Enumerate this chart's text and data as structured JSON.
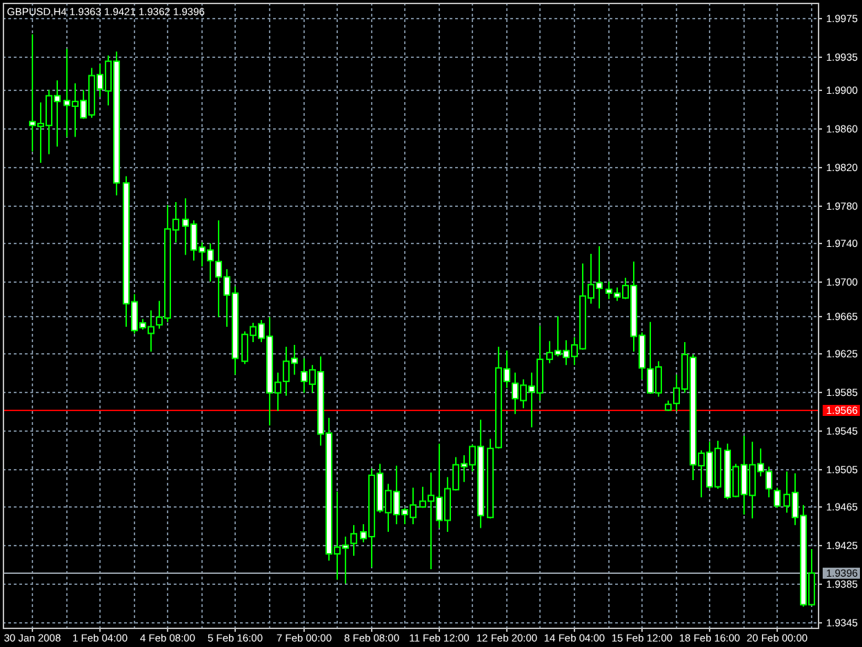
{
  "chart_data": {
    "type": "candlestick",
    "title": "GBPUSD,H4 1.9363 1.9421 1.9362 1.9396",
    "categories": [
      "30 Jan 2008",
      null,
      null,
      null,
      null,
      null,
      null,
      null,
      "1 Feb 04:00",
      null,
      null,
      null,
      null,
      null,
      null,
      null,
      "4 Feb 08:00",
      null,
      null,
      null,
      null,
      null,
      null,
      null,
      "5 Feb 16:00",
      null,
      null,
      null,
      null,
      null,
      null,
      null,
      "7 Feb 00:00",
      null,
      null,
      null,
      null,
      null,
      null,
      null,
      "8 Feb 08:00",
      null,
      null,
      null,
      null,
      null,
      null,
      null,
      "11 Feb 12:00",
      null,
      null,
      null,
      null,
      null,
      null,
      null,
      "12 Feb 20:00",
      null,
      null,
      null,
      null,
      null,
      null,
      null,
      "14 Feb 04:00",
      null,
      null,
      null,
      null,
      null,
      null,
      null,
      "15 Feb 12:00",
      null,
      null,
      null,
      null,
      null,
      null,
      null,
      "18 Feb 16:00",
      null,
      null,
      null,
      null,
      null,
      null,
      null,
      "20 Feb 00:00",
      null,
      null,
      null,
      null
    ],
    "ohlc": [
      [
        1.9867,
        1.9958,
        1.9836,
        1.9863
      ],
      [
        1.9862,
        1.9887,
        1.9824,
        1.9865
      ],
      [
        1.9863,
        1.99,
        1.9833,
        1.9894
      ],
      [
        1.9894,
        1.991,
        1.9841,
        1.9888
      ],
      [
        1.9889,
        1.9943,
        1.9851,
        1.9884
      ],
      [
        1.9883,
        1.9907,
        1.9851,
        1.9888
      ],
      [
        1.9889,
        1.99,
        1.987,
        1.9871
      ],
      [
        1.9874,
        1.9923,
        1.9871,
        1.9915
      ],
      [
        1.9916,
        1.9927,
        1.9893,
        1.9901
      ],
      [
        1.9899,
        1.9936,
        1.9884,
        1.993
      ],
      [
        1.993,
        1.994,
        1.979,
        1.9803
      ],
      [
        1.9803,
        1.981,
        1.9653,
        1.9677
      ],
      [
        1.9679,
        1.9687,
        1.9646,
        1.9649
      ],
      [
        1.9657,
        1.9661,
        1.965,
        1.9652
      ],
      [
        1.9646,
        1.967,
        1.9627,
        1.9653
      ],
      [
        1.9655,
        1.968,
        1.9651,
        1.9663
      ],
      [
        1.9662,
        1.978,
        1.9658,
        1.9755
      ],
      [
        1.9754,
        1.9783,
        1.9741,
        1.9765
      ],
      [
        1.9765,
        1.9787,
        1.9728,
        1.9758
      ],
      [
        1.976,
        1.9764,
        1.9722,
        1.9733
      ],
      [
        1.9736,
        1.9741,
        1.9716,
        1.9731
      ],
      [
        1.9733,
        1.974,
        1.97,
        1.9722
      ],
      [
        1.9721,
        1.9764,
        1.9663,
        1.9705
      ],
      [
        1.9705,
        1.9713,
        1.9653,
        1.9686
      ],
      [
        1.9688,
        1.9695,
        1.9603,
        1.962
      ],
      [
        1.9617,
        1.9648,
        1.9614,
        1.9645
      ],
      [
        1.9644,
        1.9657,
        1.9637,
        1.9653
      ],
      [
        1.9656,
        1.966,
        1.9637,
        1.9641
      ],
      [
        1.9643,
        1.9663,
        1.955,
        1.9584
      ],
      [
        1.9584,
        1.9605,
        1.9565,
        1.9595
      ],
      [
        1.9596,
        1.9632,
        1.9581,
        1.9617
      ],
      [
        1.962,
        1.9634,
        1.9603,
        1.9615
      ],
      [
        1.9606,
        1.962,
        1.9584,
        1.9596
      ],
      [
        1.9593,
        1.9613,
        1.9584,
        1.9608
      ],
      [
        1.9606,
        1.9622,
        1.9529,
        1.9541
      ],
      [
        1.9542,
        1.9558,
        1.9409,
        1.9416
      ],
      [
        1.9416,
        1.9481,
        1.9389,
        1.9423
      ],
      [
        1.9425,
        1.9434,
        1.9385,
        1.9422
      ],
      [
        1.9427,
        1.9446,
        1.9414,
        1.9437
      ],
      [
        1.9439,
        1.9447,
        1.9428,
        1.9432
      ],
      [
        1.9434,
        1.9505,
        1.9402,
        1.9498
      ],
      [
        1.95,
        1.951,
        1.9459,
        1.9461
      ],
      [
        1.9459,
        1.9489,
        1.9439,
        1.9482
      ],
      [
        1.9481,
        1.9508,
        1.9447,
        1.9457
      ],
      [
        1.9462,
        1.9464,
        1.9447,
        1.9457
      ],
      [
        1.9454,
        1.9485,
        1.9447,
        1.9467
      ],
      [
        1.9465,
        1.9486,
        1.9464,
        1.9471
      ],
      [
        1.9471,
        1.9501,
        1.94,
        1.9477
      ],
      [
        1.9475,
        1.9531,
        1.9443,
        1.9451
      ],
      [
        1.9451,
        1.9496,
        1.9439,
        1.9484
      ],
      [
        1.9483,
        1.9517,
        1.9482,
        1.9509
      ],
      [
        1.951,
        1.9519,
        1.9491,
        1.9507
      ],
      [
        1.9509,
        1.953,
        1.9502,
        1.9528
      ],
      [
        1.9528,
        1.9556,
        1.9443,
        1.9456
      ],
      [
        1.9454,
        1.9536,
        1.9453,
        1.9526
      ],
      [
        1.9527,
        1.9632,
        1.9526,
        1.961
      ],
      [
        1.9609,
        1.9628,
        1.9589,
        1.9596
      ],
      [
        1.9594,
        1.9605,
        1.9562,
        1.9578
      ],
      [
        1.9576,
        1.9598,
        1.9568,
        1.9592
      ],
      [
        1.9591,
        1.9605,
        1.9548,
        1.9585
      ],
      [
        1.9584,
        1.9654,
        1.9576,
        1.9619
      ],
      [
        1.9619,
        1.9638,
        1.9615,
        1.9626
      ],
      [
        1.9628,
        1.9664,
        1.9622,
        1.9624
      ],
      [
        1.9628,
        1.9639,
        1.9613,
        1.9621
      ],
      [
        1.9622,
        1.9642,
        1.9613,
        1.9634
      ],
      [
        1.963,
        1.9719,
        1.9629,
        1.9685
      ],
      [
        1.9683,
        1.9729,
        1.9677,
        1.9697
      ],
      [
        1.9699,
        1.9737,
        1.9672,
        1.9693
      ],
      [
        1.9692,
        1.97,
        1.9682,
        1.9688
      ],
      [
        1.9688,
        1.9694,
        1.968,
        1.9684
      ],
      [
        1.9683,
        1.9704,
        1.9682,
        1.9696
      ],
      [
        1.9696,
        1.9721,
        1.9627,
        1.9643
      ],
      [
        1.9644,
        1.9647,
        1.9598,
        1.961
      ],
      [
        1.9609,
        1.9658,
        1.9583,
        1.9584
      ],
      [
        1.9584,
        1.9617,
        1.958,
        1.9611
      ],
      [
        1.9566,
        1.9576,
        1.9565,
        1.9572
      ],
      [
        1.9573,
        1.9603,
        1.9565,
        1.9589
      ],
      [
        1.9588,
        1.9637,
        1.9584,
        1.9624
      ],
      [
        1.9621,
        1.9624,
        1.9493,
        1.9509
      ],
      [
        1.9508,
        1.9524,
        1.9475,
        1.9521
      ],
      [
        1.9522,
        1.9533,
        1.9484,
        1.9486
      ],
      [
        1.9486,
        1.9534,
        1.9484,
        1.9526
      ],
      [
        1.9524,
        1.9531,
        1.9473,
        1.9475
      ],
      [
        1.9476,
        1.951,
        1.9475,
        1.9507
      ],
      [
        1.9509,
        1.9539,
        1.9457,
        1.9478
      ],
      [
        1.9477,
        1.9533,
        1.9453,
        1.9509
      ],
      [
        1.951,
        1.9526,
        1.9497,
        1.9502
      ],
      [
        1.9502,
        1.9507,
        1.9475,
        1.9484
      ],
      [
        1.9482,
        1.9485,
        1.9464,
        1.9466
      ],
      [
        1.9466,
        1.9502,
        1.9459,
        1.9478
      ],
      [
        1.948,
        1.95,
        1.9446,
        1.9454
      ],
      [
        1.9456,
        1.9467,
        1.9361,
        1.9363
      ],
      [
        1.9363,
        1.9421,
        1.9362,
        1.9396
      ]
    ],
    "color": "#00ff00",
    "ylim": [
      1.9339,
      1.9991
    ],
    "yticks": [
      1.9345,
      1.9385,
      1.9425,
      1.9465,
      1.9505,
      1.9545,
      1.9585,
      1.9625,
      1.9665,
      {
        "value": 1.97,
        "label": "1.9700"
      },
      {
        "value": 1.974,
        "label": "1.9740"
      },
      {
        "value": 1.978,
        "label": "1.9780"
      },
      {
        "value": 1.982,
        "label": "1.9820"
      },
      {
        "value": 1.986,
        "label": "1.9860"
      },
      {
        "value": 1.99,
        "label": "1.9900"
      },
      1.9935,
      1.9975
    ],
    "grid": true,
    "ref_lines": [
      {
        "axis": "y",
        "value": 1.9566,
        "label": "1.9566",
        "color": "#ff0000"
      },
      {
        "axis": "y",
        "value": 1.9396,
        "label": "1.9396",
        "color": "#9aa4ae"
      }
    ]
  }
}
